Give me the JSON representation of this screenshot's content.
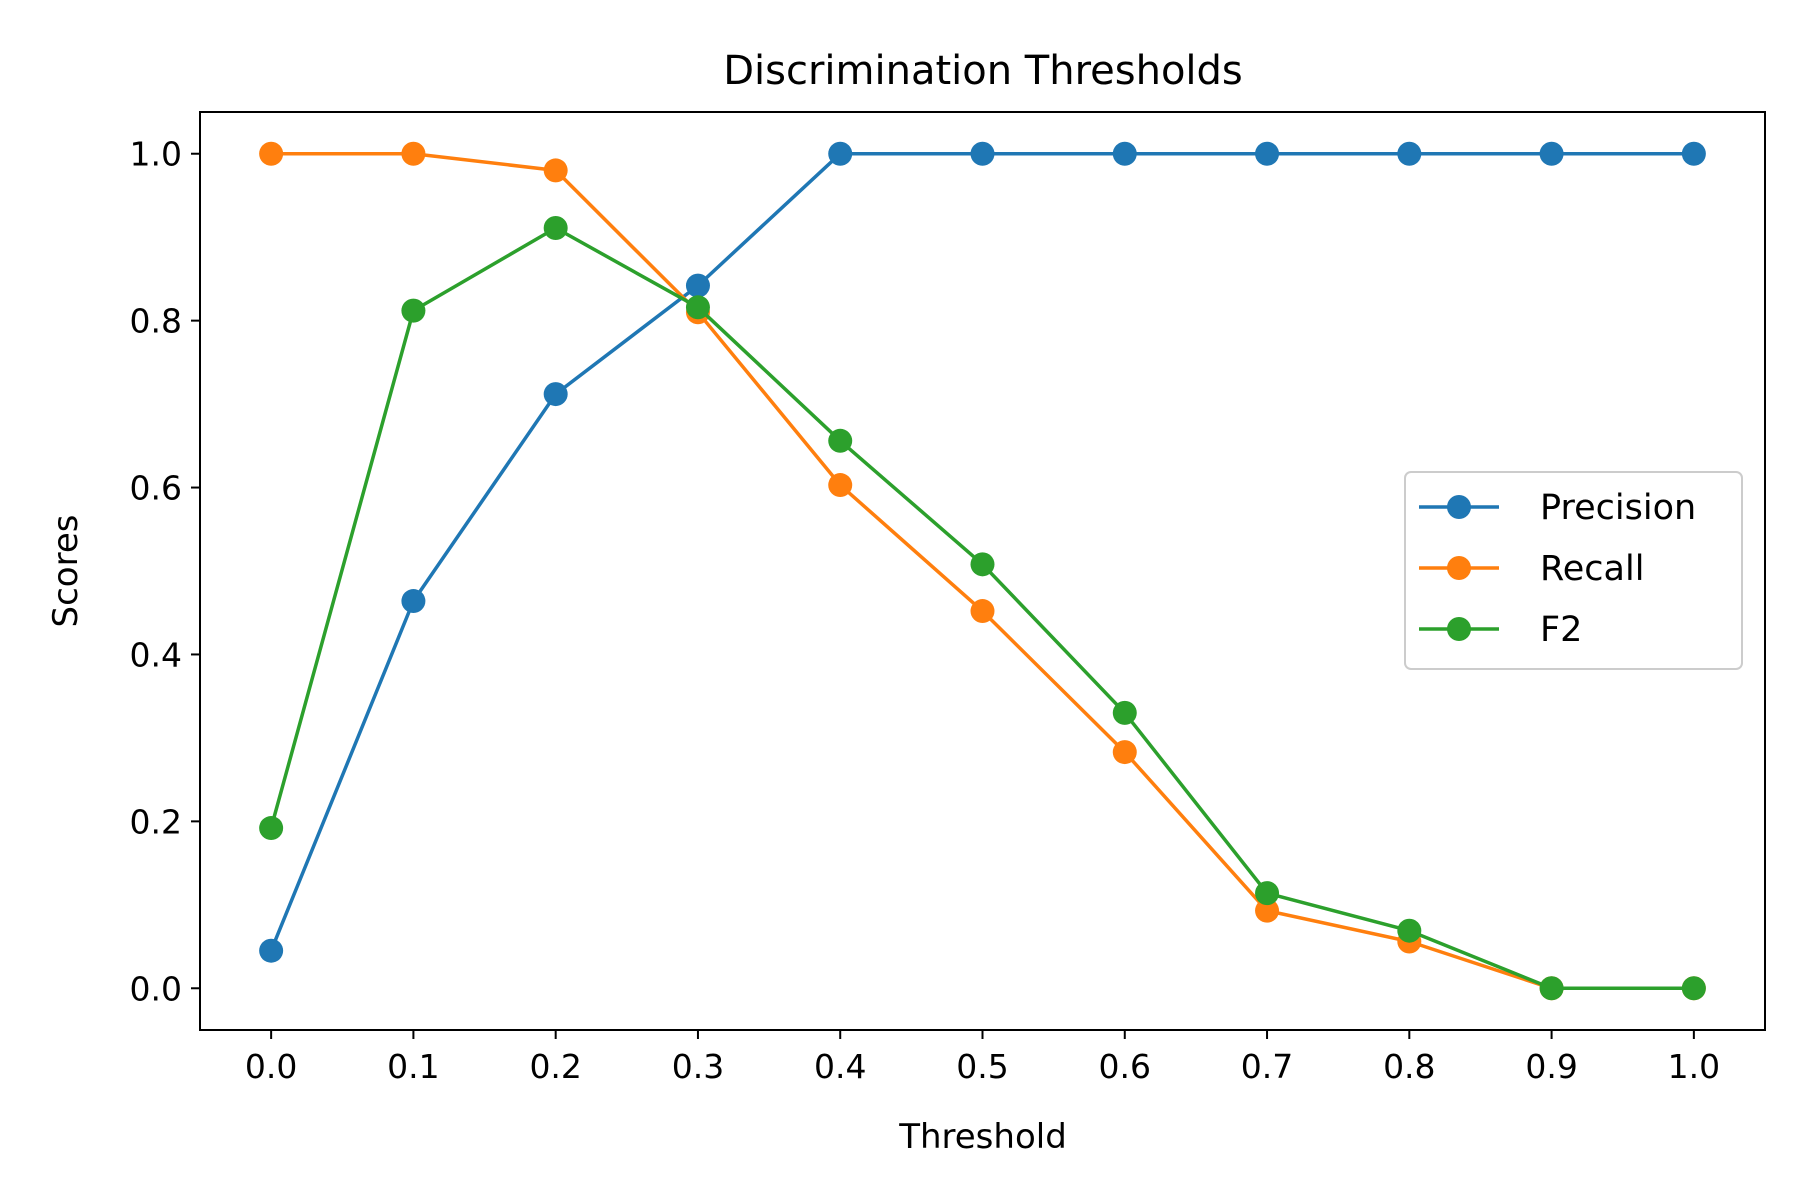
{
  "chart_data": {
    "type": "line",
    "title": "Discrimination Thresholds",
    "xlabel": "Threshold",
    "ylabel": "Scores",
    "x": [
      0.0,
      0.1,
      0.2,
      0.3,
      0.4,
      0.5,
      0.6,
      0.7,
      0.8,
      0.9,
      1.0
    ],
    "xticks": [
      "0.0",
      "0.1",
      "0.2",
      "0.3",
      "0.4",
      "0.5",
      "0.6",
      "0.7",
      "0.8",
      "0.9",
      "1.0"
    ],
    "yticks": [
      "0.0",
      "0.2",
      "0.4",
      "0.6",
      "0.8",
      "1.0"
    ],
    "xlim": [
      -0.05,
      1.05
    ],
    "ylim": [
      -0.05,
      1.05
    ],
    "grid": false,
    "legend_position": "center-right",
    "series": [
      {
        "name": "Precision",
        "color": "#1f77b4",
        "values": [
          0.045,
          0.464,
          0.712,
          0.842,
          1.0,
          1.0,
          1.0,
          1.0,
          1.0,
          1.0,
          1.0
        ]
      },
      {
        "name": "Recall",
        "color": "#ff7f0e",
        "values": [
          1.0,
          1.0,
          0.98,
          0.81,
          0.603,
          0.452,
          0.283,
          0.093,
          0.056,
          0.0,
          0.0
        ]
      },
      {
        "name": "F2",
        "color": "#2ca02c",
        "values": [
          0.192,
          0.812,
          0.911,
          0.816,
          0.656,
          0.508,
          0.33,
          0.114,
          0.069,
          0.0,
          0.0
        ]
      }
    ]
  }
}
